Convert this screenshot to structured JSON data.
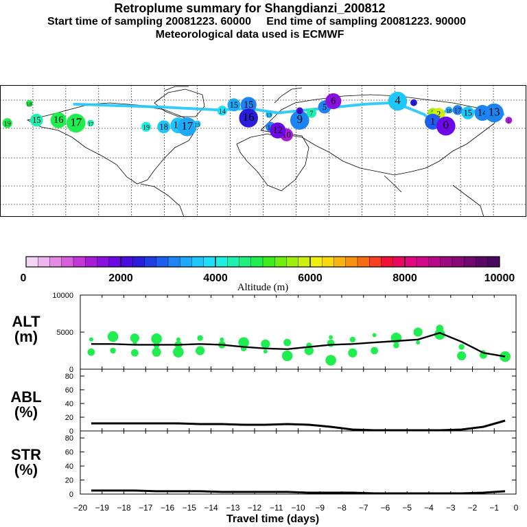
{
  "header": {
    "title": "Retroplume summary for Shangdianzi_200812",
    "sampling": "Start time of sampling 20081223. 60000     End time of sampling 20081223. 90000",
    "met": "Meteorological data used is ECMWF"
  },
  "colorbar": {
    "ticks": [
      "0",
      "2000",
      "4000",
      "6000",
      "8000",
      "10000"
    ],
    "label": "Altitude (m)",
    "colors": [
      "#f4d6f4",
      "#eeb6ee",
      "#e58ae5",
      "#d95ed9",
      "#c537d4",
      "#a81ed8",
      "#8a10df",
      "#6c08e6",
      "#4a0ae0",
      "#2b1bdc",
      "#1e3ee6",
      "#1e5ff0",
      "#1e84f4",
      "#1ea8f8",
      "#1ec6fa",
      "#1edef8",
      "#1ef0e0",
      "#1ef0b0",
      "#1eef80",
      "#20ee50",
      "#40ee20",
      "#70ee10",
      "#a0ee10",
      "#cdef10",
      "#f0f010",
      "#f8d810",
      "#f8b410",
      "#f89010",
      "#f86c10",
      "#f84020",
      "#f01038",
      "#e80860",
      "#e00880",
      "#d0088a",
      "#b80888",
      "#a00880",
      "#880878",
      "#700870",
      "#5a0868",
      "#480860"
    ]
  },
  "map": {
    "clusters": [
      {
        "label": "18",
        "lon": -160,
        "lat": 65,
        "color": "#20ee50"
      },
      {
        "label": "19",
        "lon": -175,
        "lat": 38,
        "color": "#20ee50"
      },
      {
        "label": "15",
        "lon": -155,
        "lat": 42,
        "color": "#1ef0b0"
      },
      {
        "label": "16",
        "lon": -140,
        "lat": 42,
        "color": "#20ee50"
      },
      {
        "label": "17",
        "lon": -128,
        "lat": 38,
        "color": "#20ee50"
      },
      {
        "label": "17",
        "lon": -118,
        "lat": 38,
        "color": "#1ef0b0"
      },
      {
        "label": "19",
        "lon": -80,
        "lat": 33,
        "color": "#1ef0e0"
      },
      {
        "label": "18",
        "lon": -68,
        "lat": 33,
        "color": "#1ec6fa"
      },
      {
        "label": "16",
        "lon": -58,
        "lat": 35,
        "color": "#1ec6fa"
      },
      {
        "label": "17",
        "lon": -52,
        "lat": 33,
        "color": "#1ea8f8"
      },
      {
        "label": "15",
        "lon": -45,
        "lat": 37,
        "color": "#1ec6fa"
      },
      {
        "label": "14",
        "lon": -28,
        "lat": 55,
        "color": "#1edef8"
      },
      {
        "label": "15",
        "lon": -20,
        "lat": 63,
        "color": "#1ea8f8"
      },
      {
        "label": "15",
        "lon": -10,
        "lat": 63,
        "color": "#1e84f4"
      },
      {
        "label": "16",
        "lon": -10,
        "lat": 45,
        "color": "#2b1bdc"
      },
      {
        "label": "13",
        "lon": 4,
        "lat": 50,
        "color": "#1ec6fa"
      },
      {
        "label": "11",
        "lon": 5,
        "lat": 33,
        "color": "#1e84f4"
      },
      {
        "label": "10",
        "lon": 16,
        "lat": 22,
        "color": "#a81ed8"
      },
      {
        "label": "12",
        "lon": 10,
        "lat": 28,
        "color": "#6c08e6"
      },
      {
        "label": "9",
        "lon": 25,
        "lat": 42,
        "color": "#1e84f4"
      },
      {
        "label": "8",
        "lon": 25,
        "lat": 55,
        "color": "#4a0ae0"
      },
      {
        "label": "7",
        "lon": 33,
        "lat": 52,
        "color": "#1ef0b0"
      },
      {
        "label": "5",
        "lon": 42,
        "lat": 60,
        "color": "#1e84f4"
      },
      {
        "label": "6",
        "lon": 48,
        "lat": 68,
        "color": "#8a10df"
      },
      {
        "label": "4",
        "lon": 92,
        "lat": 68,
        "color": "#1ec6fa"
      },
      {
        "label": "5",
        "lon": 103,
        "lat": 66,
        "color": "#2b1bdc"
      },
      {
        "label": "3",
        "lon": 116,
        "lat": 52,
        "color": "#a0ee10"
      },
      {
        "label": "2",
        "lon": 120,
        "lat": 50,
        "color": "#cdef10"
      },
      {
        "label": "1",
        "lon": 116,
        "lat": 40,
        "color": "#1e5ff0"
      },
      {
        "label": "0",
        "lon": 125,
        "lat": 34,
        "color": "#6c08e6"
      },
      {
        "label": "18",
        "lon": 127,
        "lat": 56,
        "color": "#1ea8f8"
      },
      {
        "label": "17",
        "lon": 133,
        "lat": 56,
        "color": "#1e84f4"
      },
      {
        "label": "15",
        "lon": 140,
        "lat": 52,
        "color": "#1ec6fa"
      },
      {
        "label": "14",
        "lon": 150,
        "lat": 52,
        "color": "#1e84f4"
      },
      {
        "label": "13",
        "lon": 158,
        "lat": 52,
        "color": "#1e84f4"
      },
      {
        "label": "1",
        "lon": 168,
        "lat": 42,
        "color": "#a81ed8"
      }
    ]
  },
  "chart_data": [
    {
      "type": "scatter",
      "panel": "ALT",
      "ylabel_line1": "ALT",
      "ylabel_line2": "(m)",
      "ylim": [
        0,
        10000
      ],
      "yticks": [
        "0",
        "5000",
        "10000"
      ],
      "x": [
        -19.5,
        -18.5,
        -17.5,
        -16.5,
        -15.5,
        -14.5,
        -13.5,
        -12.5,
        -11.5,
        -10.5,
        -9.5,
        -8.5,
        -7.5,
        -6.5,
        -5.5,
        -4.5,
        -3.5,
        -2.5,
        -1.5,
        -0.5
      ],
      "line": [
        3400,
        3400,
        3300,
        3300,
        3300,
        3400,
        3300,
        3000,
        2800,
        2700,
        3000,
        3300,
        3400,
        3600,
        3800,
        4000,
        4900,
        3700,
        2200,
        1700
      ],
      "points": [
        {
          "x": -19.5,
          "y": 4000
        },
        {
          "x": -19.5,
          "y": 2300
        },
        {
          "x": -18.5,
          "y": 4400
        },
        {
          "x": -18.5,
          "y": 2500
        },
        {
          "x": -17.5,
          "y": 4200
        },
        {
          "x": -17.5,
          "y": 3500
        },
        {
          "x": -17.5,
          "y": 2200
        },
        {
          "x": -16.5,
          "y": 4100
        },
        {
          "x": -16.5,
          "y": 3200
        },
        {
          "x": -16.5,
          "y": 2300
        },
        {
          "x": -15.5,
          "y": 4000
        },
        {
          "x": -15.5,
          "y": 3300
        },
        {
          "x": -15.5,
          "y": 2300
        },
        {
          "x": -14.5,
          "y": 4200
        },
        {
          "x": -14.5,
          "y": 2500
        },
        {
          "x": -13.5,
          "y": 4000
        },
        {
          "x": -13.5,
          "y": 3300
        },
        {
          "x": -12.5,
          "y": 3600
        },
        {
          "x": -12.5,
          "y": 2800
        },
        {
          "x": -11.5,
          "y": 3400
        },
        {
          "x": -11.5,
          "y": 2400
        },
        {
          "x": -10.5,
          "y": 3600
        },
        {
          "x": -10.5,
          "y": 1800
        },
        {
          "x": -9.5,
          "y": 3200
        },
        {
          "x": -9.5,
          "y": 2500
        },
        {
          "x": -8.5,
          "y": 4300
        },
        {
          "x": -8.5,
          "y": 3500
        },
        {
          "x": -8.5,
          "y": 1200
        },
        {
          "x": -7.5,
          "y": 4000
        },
        {
          "x": -7.5,
          "y": 2200
        },
        {
          "x": -6.5,
          "y": 4600
        },
        {
          "x": -6.5,
          "y": 2500
        },
        {
          "x": -5.5,
          "y": 4200
        },
        {
          "x": -5.5,
          "y": 3200
        },
        {
          "x": -4.5,
          "y": 5000
        },
        {
          "x": -4.5,
          "y": 3600
        },
        {
          "x": -3.5,
          "y": 5500
        },
        {
          "x": -3.5,
          "y": 4700
        },
        {
          "x": -2.5,
          "y": 3000
        },
        {
          "x": -2.5,
          "y": 1800
        },
        {
          "x": -1.5,
          "y": 2300
        },
        {
          "x": -1.5,
          "y": 1900
        },
        {
          "x": -0.5,
          "y": 1700
        }
      ]
    },
    {
      "type": "line",
      "panel": "ABL",
      "ylabel_line1": "ABL",
      "ylabel_line2": "(%)",
      "ylim": [
        0,
        90
      ],
      "yticks": [
        "0",
        "20",
        "40",
        "60",
        "80"
      ],
      "x": [
        -19.5,
        -18.5,
        -17.5,
        -16.5,
        -15.5,
        -14.5,
        -13.5,
        -12.5,
        -11.5,
        -10.5,
        -9.5,
        -8.5,
        -7.5,
        -6.5,
        -5.5,
        -4.5,
        -3.5,
        -2.5,
        -1.5,
        -0.5
      ],
      "values": [
        11,
        11,
        11,
        11,
        11,
        10,
        10,
        9,
        9,
        10,
        9,
        6,
        2,
        1,
        1,
        1,
        1,
        2,
        6,
        15
      ]
    },
    {
      "type": "line",
      "panel": "STR",
      "ylabel_line1": "STR",
      "ylabel_line2": "(%)",
      "ylim": [
        0,
        90
      ],
      "yticks": [
        "0",
        "20",
        "40",
        "60",
        "80"
      ],
      "x": [
        -19.5,
        -18.5,
        -17.5,
        -16.5,
        -15.5,
        -14.5,
        -13.5,
        -12.5,
        -11.5,
        -10.5,
        -9.5,
        -8.5,
        -7.5,
        -6.5,
        -5.5,
        -4.5,
        -3.5,
        -2.5,
        -1.5,
        -0.5
      ],
      "values": [
        5,
        5,
        5,
        4,
        4,
        4,
        3,
        3,
        3,
        3,
        2,
        2,
        2,
        1,
        1,
        1,
        1,
        1,
        2,
        4
      ]
    }
  ],
  "xaxis": {
    "title": "Travel time (days)",
    "ticks": [
      "−20",
      "−19",
      "−18",
      "−17",
      "−16",
      "−15",
      "−14",
      "−13",
      "−12",
      "−11",
      "−10",
      "−9",
      "−8",
      "−7",
      "−6",
      "−5",
      "−4",
      "−3",
      "−2",
      "−1",
      "0"
    ]
  }
}
